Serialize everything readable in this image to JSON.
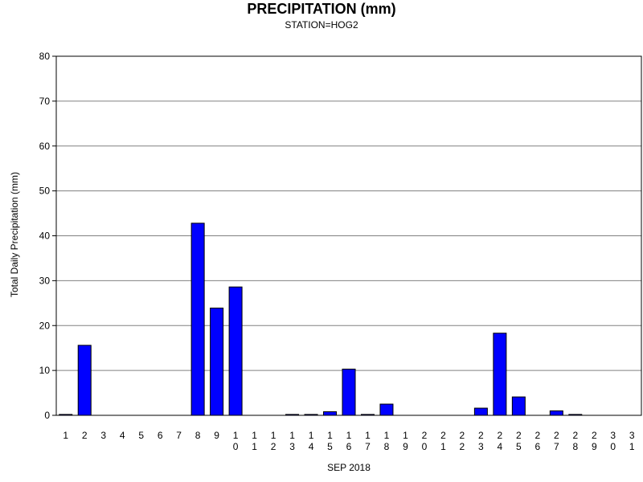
{
  "chart_data": {
    "type": "bar",
    "title": "PRECIPITATION (mm)",
    "subtitle": "STATION=HOG2",
    "xlabel": "SEP 2018",
    "ylabel": "Total Daily Precipitation (mm)",
    "ylim": [
      0,
      80
    ],
    "yticks": [
      "0",
      "10",
      "20",
      "30",
      "40",
      "50",
      "60",
      "70",
      "80"
    ],
    "categories": [
      "1",
      "2",
      "3",
      "4",
      "5",
      "6",
      "7",
      "8",
      "9",
      "10",
      "11",
      "12",
      "13",
      "14",
      "15",
      "16",
      "17",
      "18",
      "19",
      "20",
      "21",
      "22",
      "23",
      "24",
      "25",
      "26",
      "27",
      "28",
      "29",
      "30",
      "31"
    ],
    "values": [
      0.2,
      15.6,
      0,
      0,
      0,
      0,
      0,
      42.8,
      23.9,
      28.6,
      0,
      0,
      0.2,
      0.2,
      0.8,
      10.3,
      0.2,
      2.5,
      0,
      0,
      0,
      0,
      1.6,
      18.3,
      4.1,
      0,
      1.0,
      0.2,
      0,
      0,
      0
    ],
    "grid": true,
    "bar_color": "#0000ff"
  }
}
